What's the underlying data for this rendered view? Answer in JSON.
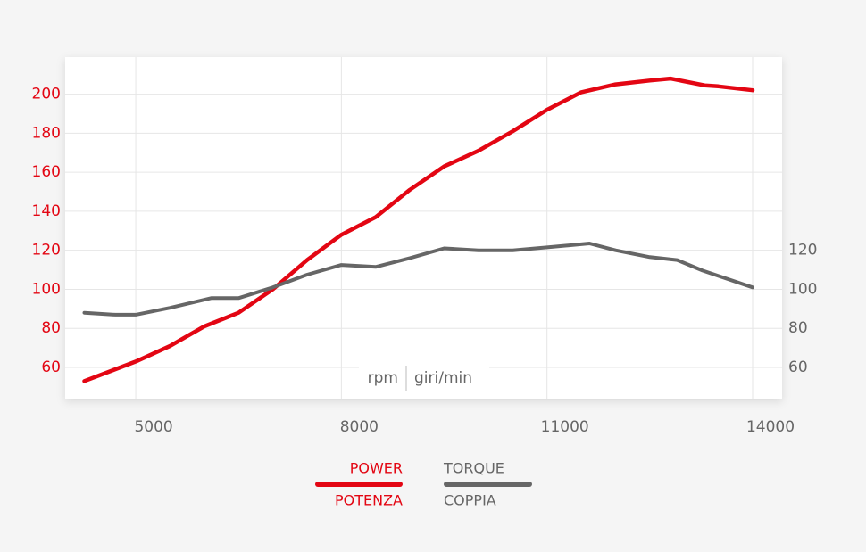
{
  "chart_data": {
    "type": "line",
    "x": [
      4250,
      4700,
      5000,
      5500,
      6000,
      6100,
      6500,
      7000,
      7500,
      8000,
      8500,
      9000,
      9500,
      10000,
      10500,
      11000,
      11500,
      11620,
      12000,
      12500,
      12800,
      12900,
      13000,
      13270,
      13300,
      13500,
      14000
    ],
    "series": [
      {
        "name": "POWER",
        "subname": "POTENZA",
        "color": "#e30613",
        "axis": "y",
        "values": [
          53,
          null,
          63,
          71,
          81,
          null,
          88,
          100,
          115,
          128,
          137,
          151,
          163,
          171,
          181,
          192,
          201,
          null,
          205,
          207,
          208,
          null,
          null,
          null,
          204.5,
          204,
          202
        ]
      },
      {
        "name": "TORQUE",
        "subname": "COPPIA",
        "color": "#666666",
        "axis": "y2",
        "values": [
          88,
          87,
          87,
          90.5,
          null,
          95.5,
          95.5,
          101,
          107.5,
          112.5,
          111.5,
          116,
          121,
          120,
          120,
          121.5,
          null,
          123.5,
          120,
          116.5,
          null,
          115,
          null,
          109.6,
          null,
          null,
          101
        ]
      }
    ],
    "xlabel": "rpm",
    "xlabel_alt": "giri/min",
    "xlim": [
      3970,
      14430
    ],
    "xticks": [
      5000,
      8000,
      11000,
      14000
    ],
    "ylim": [
      44,
      219
    ],
    "yticks": [
      60,
      80,
      100,
      120,
      140,
      160,
      180,
      200
    ],
    "y2lim": [
      44,
      219
    ],
    "y2ticks": [
      60,
      80,
      100,
      120
    ],
    "grid": true
  }
}
